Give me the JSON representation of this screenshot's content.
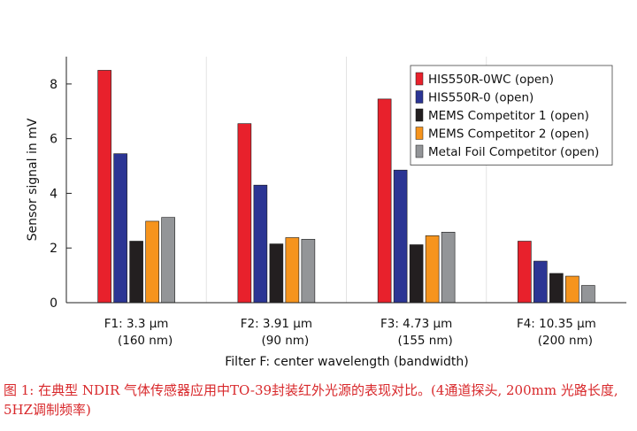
{
  "chart_data": {
    "type": "bar",
    "title": "",
    "xlabel": "Filter F: center wavelength (bandwidth)",
    "ylabel": "Sensor signal in mV",
    "ylim": [
      0,
      9
    ],
    "yticks": [
      0,
      2,
      4,
      6,
      8
    ],
    "grid": false,
    "legend_position": "top-right",
    "categories": [
      {
        "line1": "F1: 3.3 µm",
        "line2": "(160 nm)"
      },
      {
        "line1": "F2: 3.91 µm",
        "line2": "(90 nm)"
      },
      {
        "line1": "F3: 4.73 µm",
        "line2": "(155 nm)"
      },
      {
        "line1": "F4: 10.35 µm",
        "line2": "(200 nm)"
      }
    ],
    "series": [
      {
        "name": "HIS550R-0WC (open)",
        "color": "#e8212c",
        "values": [
          8.5,
          6.55,
          7.45,
          2.25
        ]
      },
      {
        "name": "HIS550R-0 (open)",
        "color": "#2b3594",
        "values": [
          5.45,
          4.3,
          4.85,
          1.52
        ]
      },
      {
        "name": "MEMS Competitor 1 (open)",
        "color": "#231f20",
        "values": [
          2.25,
          2.15,
          2.12,
          1.07
        ]
      },
      {
        "name": "MEMS Competitor 2 (open)",
        "color": "#f6941d",
        "values": [
          2.98,
          2.38,
          2.45,
          0.97
        ]
      },
      {
        "name": "Metal Foil Competitor (open)",
        "color": "#939598",
        "values": [
          3.12,
          2.32,
          2.58,
          0.63
        ]
      }
    ]
  },
  "caption": "图 1: 在典型 NDIR 气体传感器应用中TO-39封装红外光源的表现对比。(4通道探头, 200mm 光路长度, 5HZ调制频率)"
}
